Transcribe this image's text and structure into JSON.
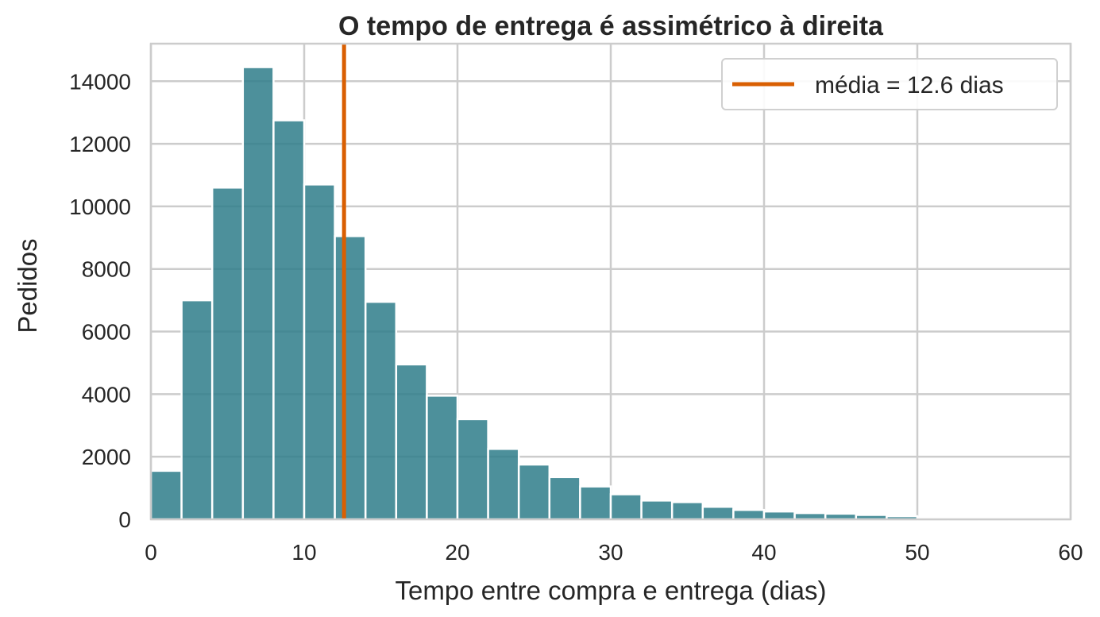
{
  "chart_data": {
    "type": "bar",
    "title": "O tempo de entrega é assimétrico à direita",
    "xlabel": "Tempo entre compra e entrega (dias)",
    "ylabel": "Pedidos",
    "xlim": [
      0,
      60
    ],
    "ylim": [
      0,
      15200
    ],
    "xticks": [
      0,
      10,
      20,
      30,
      40,
      50,
      60
    ],
    "yticks": [
      0,
      2000,
      4000,
      6000,
      8000,
      10000,
      12000,
      14000
    ],
    "grid": true,
    "legend_position": "top-right",
    "bin_width": 2,
    "bin_edges_start": [
      0,
      2,
      4,
      6,
      8,
      10,
      12,
      14,
      16,
      18,
      20,
      22,
      24,
      26,
      28,
      30,
      32,
      34,
      36,
      38,
      40,
      42,
      44,
      46,
      48,
      50,
      52,
      54,
      56,
      58
    ],
    "values": [
      1550,
      7000,
      10600,
      14450,
      12750,
      10700,
      9050,
      6950,
      4950,
      3950,
      3200,
      2250,
      1750,
      1350,
      1050,
      800,
      600,
      550,
      400,
      300,
      250,
      200,
      180,
      140,
      100,
      60,
      40,
      30,
      20,
      15
    ],
    "bar_color": "#2E7D89",
    "mean_line": {
      "value": 12.6,
      "label": "média = 12.6 dias",
      "color": "#D95F02"
    }
  }
}
